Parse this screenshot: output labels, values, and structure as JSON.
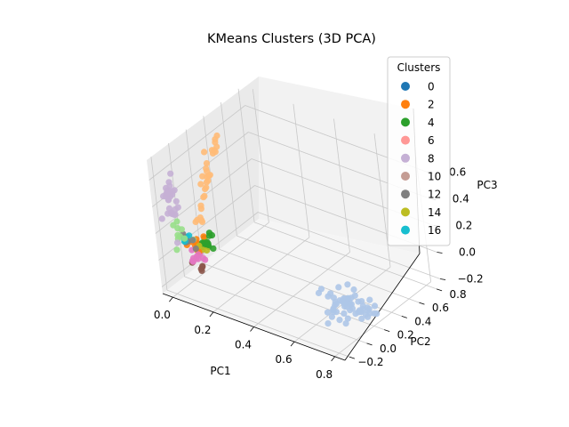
{
  "chart_data": {
    "type": "scatter",
    "projection": "3d",
    "title": "KMeans Clusters (3D PCA)",
    "xlabel": "PC1",
    "ylabel": "PC2",
    "zlabel": "PC3",
    "xlim": [
      -0.05,
      0.85
    ],
    "ylim": [
      -0.25,
      0.85
    ],
    "zlim": [
      -0.25,
      0.75
    ],
    "xticks": [
      0.0,
      0.2,
      0.4,
      0.6,
      0.8
    ],
    "yticks": [
      -0.2,
      0.0,
      0.2,
      0.4,
      0.6,
      0.8
    ],
    "zticks": [
      -0.2,
      0.0,
      0.2,
      0.4,
      0.6
    ],
    "xtick_labels": [
      "0.0",
      "0.2",
      "0.4",
      "0.6",
      "0.8"
    ],
    "ytick_labels": [
      "−0.2",
      "0.0",
      "0.2",
      "0.4",
      "0.6",
      "0.8"
    ],
    "ztick_labels": [
      "−0.2",
      "0.0",
      "0.2",
      "0.4",
      "0.6"
    ],
    "grid": true,
    "legend": {
      "title": "Clusters",
      "placement": "top-right",
      "entries": [
        {
          "label": "0",
          "color": "#1f77b4"
        },
        {
          "label": "2",
          "color": "#ff7f0e"
        },
        {
          "label": "4",
          "color": "#2ca02c"
        },
        {
          "label": "6",
          "color": "#ff9896"
        },
        {
          "label": "8",
          "color": "#c5b0d5"
        },
        {
          "label": "10",
          "color": "#c49c94"
        },
        {
          "label": "12",
          "color": "#7f7f7f"
        },
        {
          "label": "14",
          "color": "#bcbd22"
        },
        {
          "label": "16",
          "color": "#17becf"
        }
      ]
    },
    "clusters": [
      {
        "color": "#aec7e8",
        "center": [
          0.75,
          0.05,
          -0.05
        ],
        "spread": [
          0.07,
          0.07,
          0.04
        ],
        "count": 60
      },
      {
        "color": "#ffbb78",
        "line_start": [
          0.03,
          0.05,
          0.15
        ],
        "line_end": [
          0.07,
          0.25,
          0.75
        ],
        "spread": [
          0.01,
          0.015,
          0.02
        ],
        "count": 30
      },
      {
        "color": "#c5b0d5",
        "center": [
          0.0,
          -0.15,
          0.45
        ],
        "spread": [
          0.02,
          0.03,
          0.1
        ],
        "count": 30
      },
      {
        "color": "#2ca02c",
        "center": [
          0.08,
          0.03,
          0.05
        ],
        "spread": [
          0.015,
          0.015,
          0.03
        ],
        "count": 14
      },
      {
        "color": "#ff7f0e",
        "center": [
          0.03,
          0.0,
          0.02
        ],
        "spread": [
          0.02,
          0.02,
          0.03
        ],
        "count": 14
      },
      {
        "color": "#98df8a",
        "center": [
          0.0,
          -0.08,
          0.15
        ],
        "spread": [
          0.02,
          0.02,
          0.04
        ],
        "count": 10
      },
      {
        "color": "#e377c2",
        "center": [
          0.04,
          -0.02,
          -0.05
        ],
        "spread": [
          0.015,
          0.02,
          0.03
        ],
        "count": 12
      },
      {
        "color": "#8c564b",
        "center": [
          0.05,
          -0.02,
          -0.12
        ],
        "spread": [
          0.01,
          0.01,
          0.02
        ],
        "count": 5
      },
      {
        "color": "#17becf",
        "center": [
          0.01,
          -0.05,
          0.1
        ],
        "spread": [
          0.015,
          0.015,
          0.03
        ],
        "count": 6
      },
      {
        "color": "#bcbd22",
        "center": [
          0.06,
          0.02,
          0.0
        ],
        "spread": [
          0.015,
          0.015,
          0.03
        ],
        "count": 6
      },
      {
        "color": "#7f7f7f",
        "center": [
          0.02,
          -0.04,
          0.06
        ],
        "spread": [
          0.015,
          0.015,
          0.03
        ],
        "count": 6
      }
    ]
  }
}
